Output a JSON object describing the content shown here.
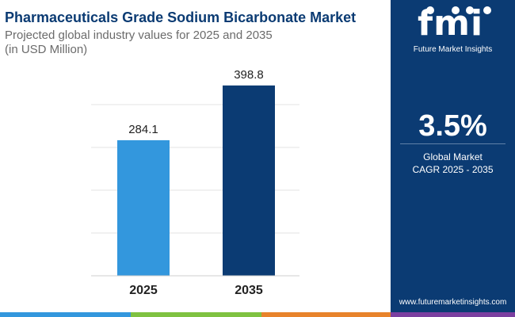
{
  "title": "Pharmaceuticals Grade Sodium Bicarbonate Market",
  "subtitle_line1": "Projected global industry values for 2025 and 2035",
  "subtitle_line2": "(in USD Million)",
  "logo": {
    "mark": "fmi",
    "name": "Future Market Insights",
    "icon": "fmi-logo-icon"
  },
  "cagr": {
    "value": "3.5%",
    "label_line1": "Global Market",
    "label_line2": "CAGR 2025 - 2035"
  },
  "website": "www.futuremarketinsights.com",
  "colors": {
    "bar_2025": "#3397dd",
    "bar_2035": "#0b3b73",
    "sidebar": "#0b3b73",
    "footer": [
      "#3397dd",
      "#7fc241",
      "#e8832b",
      "#7b3fa0"
    ]
  },
  "chart_data": {
    "type": "bar",
    "categories": [
      "2025",
      "2035"
    ],
    "values": [
      284.1,
      398.8
    ],
    "data_labels": [
      "284.1",
      "398.8"
    ],
    "ylim": [
      0,
      450
    ],
    "grid": true,
    "legend": "none"
  }
}
